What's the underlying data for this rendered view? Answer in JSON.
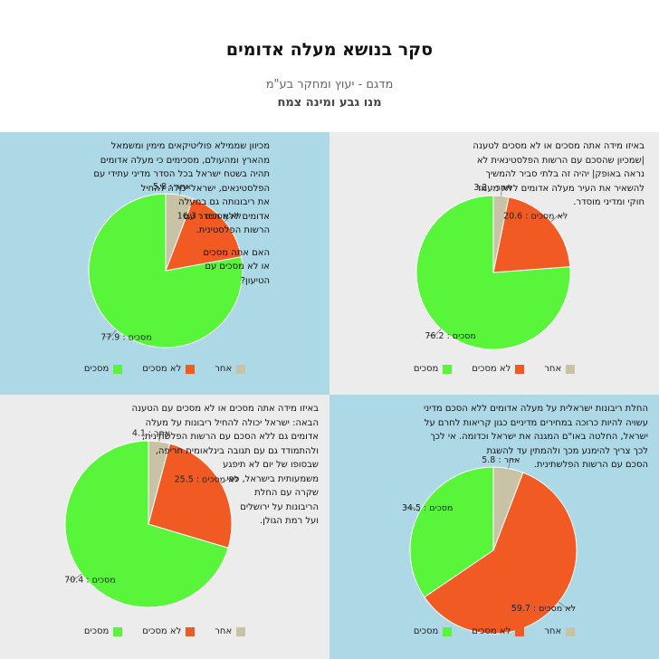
{
  "header": {
    "title": "סקר בנושא מעלה אדומים",
    "subtitle": "מדגם - יעוץ ומחקר בע\"מ",
    "authors": "מנו גבע ומינה צמח"
  },
  "colors": {
    "agree": "#58f53b",
    "disagree": "#f15a22",
    "other": "#c9c3a6"
  },
  "legend_labels": [
    "מסכים",
    "לא מסכים",
    "אחר"
  ],
  "chart_data": [
    {
      "type": "pie",
      "question": [
        "מכיוון שממילא פוליטיקאים מימין ומשמאל",
        "מהארץ ומהעולם, מסכימים כי מעלה אדומים",
        "תהיה בשטח ישראל בכל הסדר מדיני עתידי עם",
        "הפלסטינאים, ישראל יכולה להחיל",
        "את ריבונותה גם במעלה",
        "אדומים ללא הסדר עם",
        "הרשות הפלסטינית."
      ],
      "question2": [
        "האם אתה מסכים",
        "או לא מסכים עם",
        "הטיעון?"
      ],
      "categories": [
        "מסכים",
        "לא מסכים",
        "אחר"
      ],
      "values": [
        77.9,
        16.3,
        5.8
      ],
      "labels": [
        "מסכים : 77.9",
        "לא מסכים : 16.3",
        "אחר : 5.8"
      ]
    },
    {
      "type": "pie",
      "question": [
        "באיזו מידה אתה מסכים או לא מסכים לטענה",
        "|שמכיון שהסכם עם הרשות הפלסטינאית לא",
        "נראה באופק| יהיה זה בלתי סביר להמשיך",
        "להשאיר את העיר מעלה אדומים ללא מעמד",
        "חוקי ומדיני מוסדר."
      ],
      "question2": [],
      "categories": [
        "מסכים",
        "לא מסכים",
        "אחר"
      ],
      "values": [
        76.2,
        20.6,
        3.2
      ],
      "labels": [
        "מסכים : 76.2",
        "לא מסכים : 20.6",
        "אחר : 3.2"
      ]
    },
    {
      "type": "pie",
      "question": [
        "באיזו מידה אתה מסכים או לא מסכים עם הטענה",
        "הבאה: ישראל יכולה להחיל ריבונות על מעלה",
        "אדומים גם ללא הסכם עם הרשות הפלשתינית,",
        "ולהתמודד גם עם תגובה בינלאומית חריפה,",
        "שבסופו של יום לא תיפגע",
        "משמעותית בישראל, כפי",
        "שקרה עם החלת",
        "הריבונות על ירושלים",
        "ועל רמת הגולן."
      ],
      "question2": [],
      "categories": [
        "מסכים",
        "לא מסכים",
        "אחר"
      ],
      "values": [
        70.4,
        25.5,
        4.1
      ],
      "labels": [
        "מסכים : 70.4",
        "לא מסכים : 25.5",
        "אחר : 4.1"
      ]
    },
    {
      "type": "pie",
      "question": [
        "החלת ריבונות ישראלית על מעלה אדומים ללא הסכם מדיני",
        "עשויה להיות כרוכה במחירים מדיניים כגון קריאות לחרם על",
        "ישראל, החלטה באו\"ם המגנה את ישראל וכדומה. אי לכך",
        "לכך צריך להימנע מכך ולהמתין עד להשגת",
        "הסכם עם הרשות הפלשתינית."
      ],
      "question2": [],
      "categories": [
        "מסכים",
        "לא מסכים",
        "אחר"
      ],
      "values": [
        34.5,
        59.7,
        5.8
      ],
      "labels": [
        "מסכים : 34.5",
        "לא מסכים : 59.7",
        "אחר : 5.8"
      ]
    }
  ]
}
